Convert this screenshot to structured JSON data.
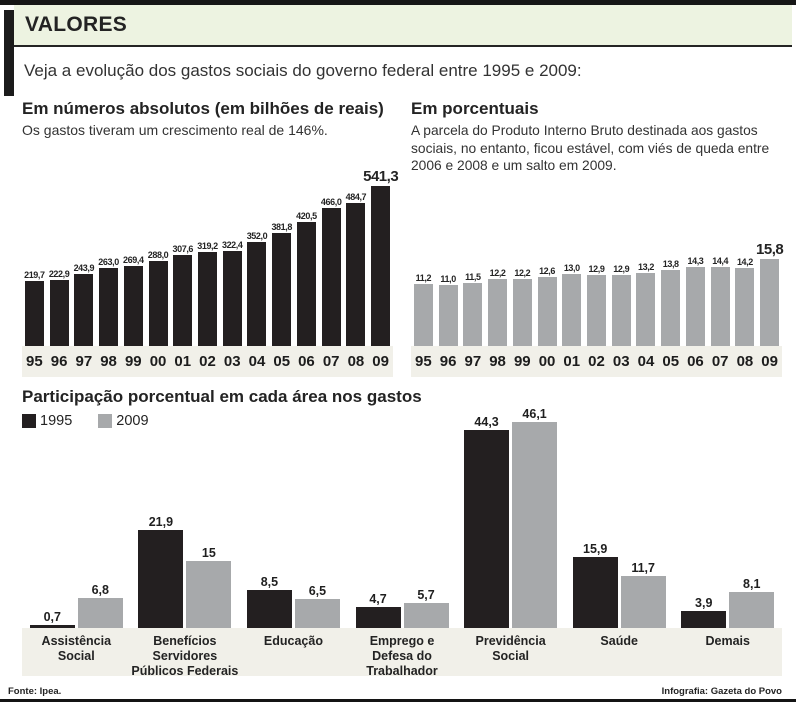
{
  "header": {
    "kicker": "VALORES",
    "subtitle": "Veja a evolução dos gastos sociais do governo federal entre 1995 e 2009:"
  },
  "colors": {
    "bar_black": "#231f20",
    "bar_gray": "#a7a9ab",
    "header_band_bg": "#edf3e1",
    "axis_band_bg": "#f1f0e9"
  },
  "chart_data": [
    {
      "type": "bar",
      "title": "Em números absolutos (em bilhões de reais)",
      "subtitle": "Os gastos tiveram um crescimento real de 146%.",
      "categories": [
        "95",
        "96",
        "97",
        "98",
        "99",
        "00",
        "01",
        "02",
        "03",
        "04",
        "05",
        "06",
        "07",
        "08",
        "09"
      ],
      "values": [
        219.7,
        222.9,
        243.9,
        263.0,
        269.4,
        288.0,
        307.6,
        319.2,
        322.4,
        352.0,
        381.8,
        420.5,
        466.0,
        484.7,
        541.3
      ],
      "value_labels": [
        "219,7",
        "222,9",
        "243,9",
        "263,0",
        "269,4",
        "288,0",
        "307,6",
        "319,2",
        "322,4",
        "352,0",
        "381,8",
        "420,5",
        "466,0",
        "484,7",
        "541,3"
      ],
      "bar_color": "#231f20",
      "ylim": [
        0,
        560
      ],
      "grid": false,
      "highlight_last": true
    },
    {
      "type": "bar",
      "title": "Em porcentuais",
      "subtitle": "A parcela do Produto Interno Bruto destinada aos gastos sociais, no entanto, ficou estável, com viés de queda entre 2006 e 2008 e um salto em 2009.",
      "categories": [
        "95",
        "96",
        "97",
        "98",
        "99",
        "00",
        "01",
        "02",
        "03",
        "04",
        "05",
        "06",
        "07",
        "08",
        "09"
      ],
      "values": [
        11.2,
        11.0,
        11.5,
        12.2,
        12.2,
        12.6,
        13.0,
        12.9,
        12.9,
        13.2,
        13.8,
        14.3,
        14.4,
        14.2,
        15.8
      ],
      "value_labels": [
        "11,2",
        "11,0",
        "11,5",
        "12,2",
        "12,2",
        "12,6",
        "13,0",
        "12,9",
        "12,9",
        "13,2",
        "13,8",
        "14,3",
        "14,4",
        "14,2",
        "15,8"
      ],
      "bar_color": "#a7a9ab",
      "ylim": [
        0,
        16.5
      ],
      "grid": false,
      "highlight_last": true
    },
    {
      "type": "bar",
      "title": "Participação porcentual em cada área nos gastos",
      "categories": [
        "Assistência Social",
        "Benefícios Servidores Públicos Federais",
        "Educação",
        "Emprego e Defesa do Trabalhador",
        "Previdência Social",
        "Saúde",
        "Demais"
      ],
      "series": [
        {
          "name": "1995",
          "color": "#231f20",
          "values": [
            0.7,
            21.9,
            8.5,
            4.7,
            44.3,
            15.9,
            3.9
          ],
          "labels": [
            "0,7",
            "21,9",
            "8,5",
            "4,7",
            "44,3",
            "15,9",
            "3,9"
          ]
        },
        {
          "name": "2009",
          "color": "#a7a9ab",
          "values": [
            6.8,
            15,
            6.5,
            5.7,
            46.1,
            11.7,
            8.1
          ],
          "labels": [
            "6,8",
            "15",
            "6,5",
            "5,7",
            "46,1",
            "11,7",
            "8,1"
          ]
        }
      ],
      "ylim": [
        0,
        48
      ],
      "grid": false,
      "legend_position": "top-left"
    }
  ],
  "footer": {
    "source": "Fonte: Ipea.",
    "credit": "Infografia: Gazeta do Povo"
  }
}
